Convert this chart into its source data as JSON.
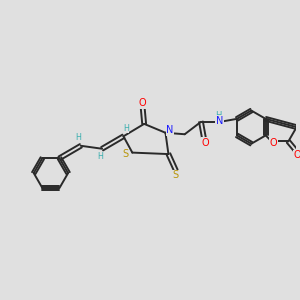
{
  "background_color": "#e0e0e0",
  "bond_color": "#2a2a2a",
  "atom_colors": {
    "O": "#ff0000",
    "N": "#1a1aff",
    "S": "#b8960a",
    "H": "#3aaeae",
    "C": "#2a2a2a"
  }
}
